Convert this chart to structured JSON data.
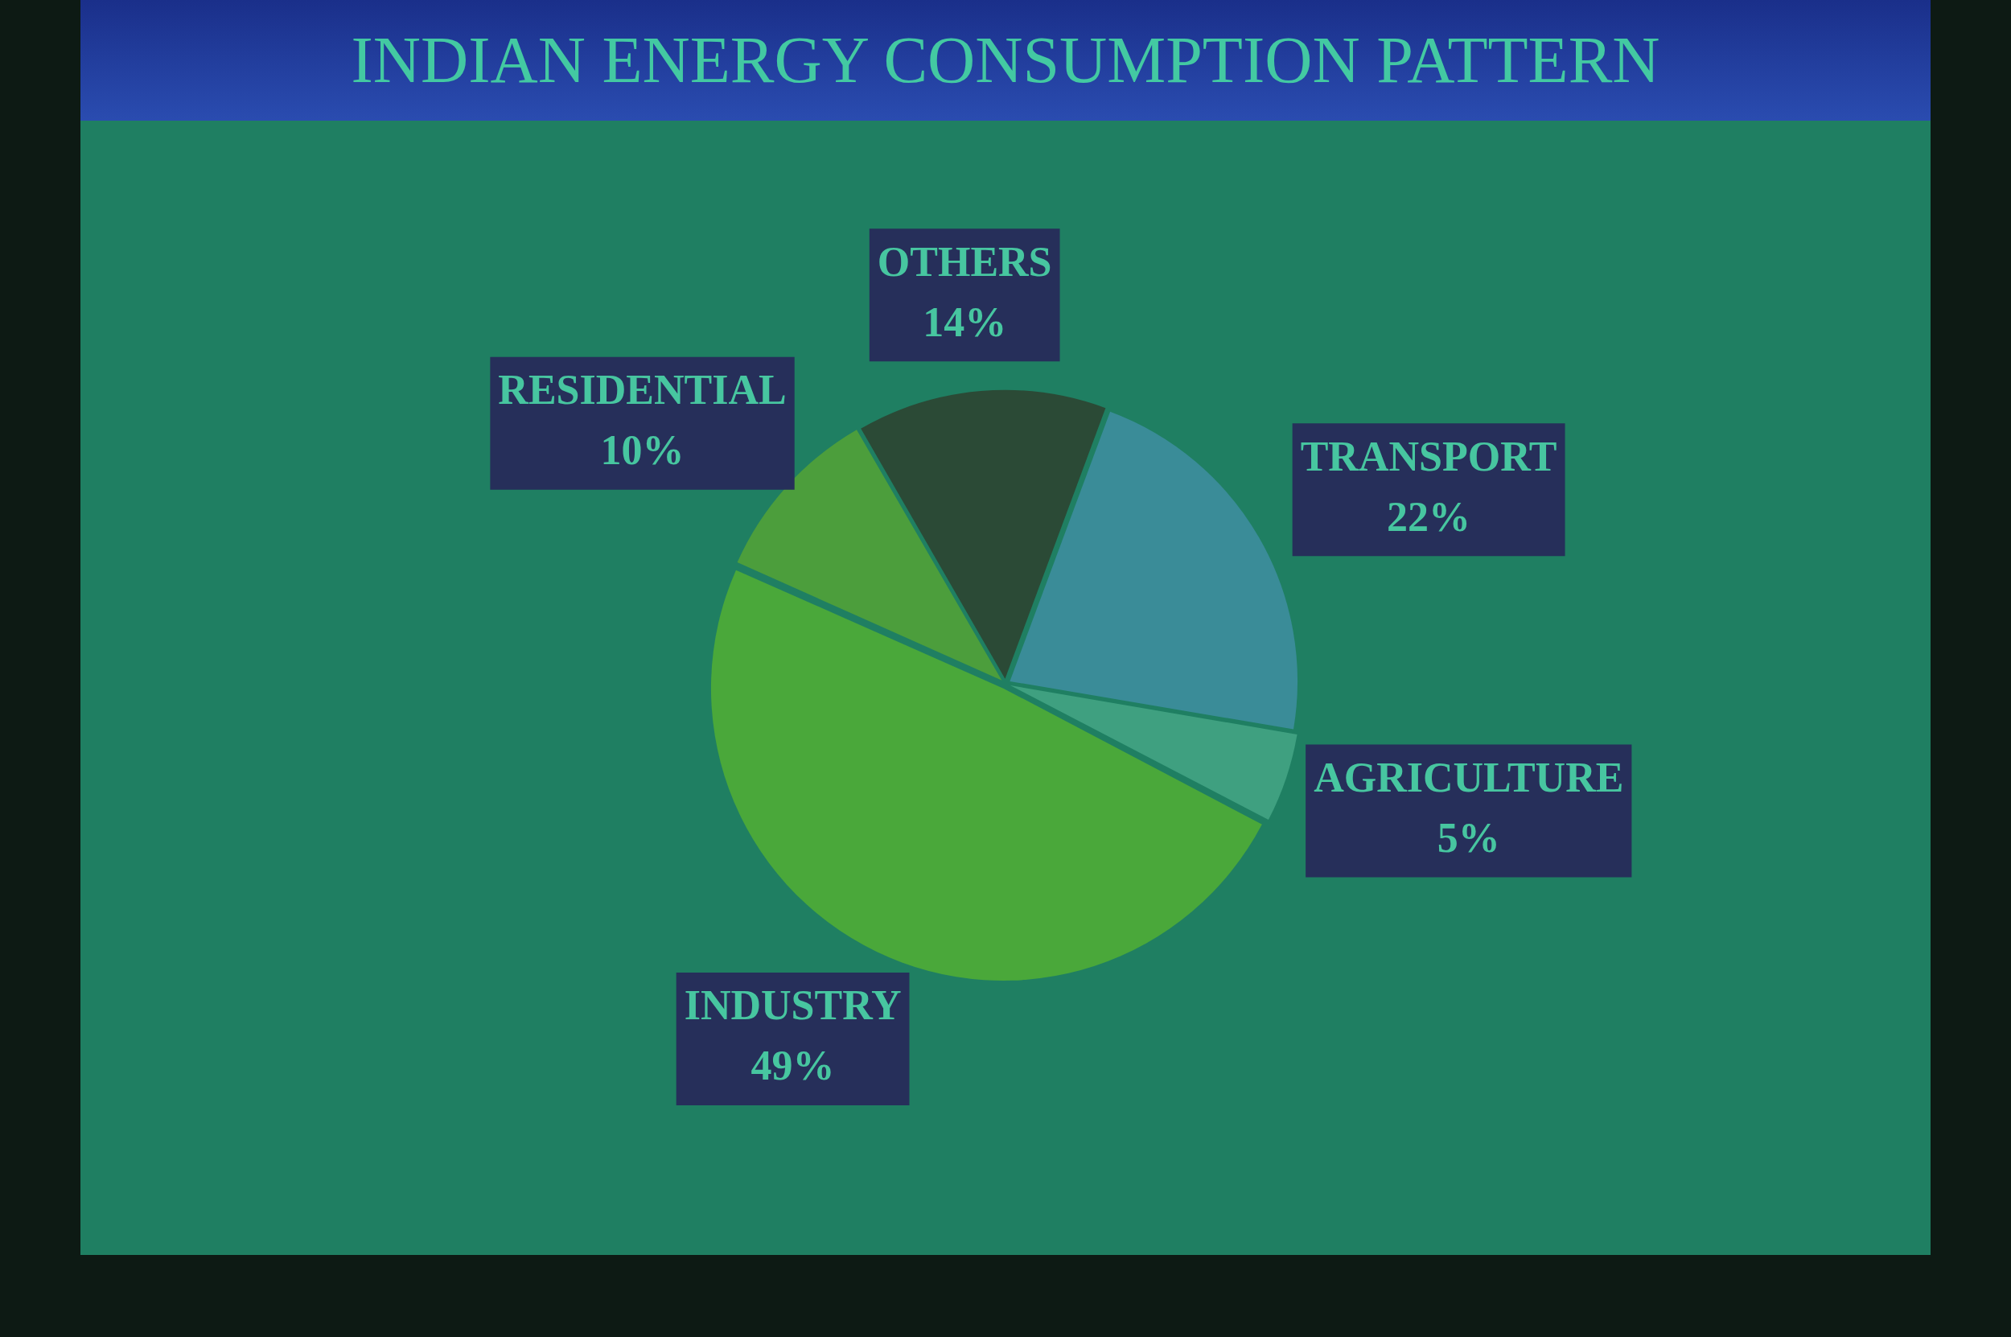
{
  "chart_data": {
    "type": "pie",
    "title": "INDIAN ENERGY CONSUMPTION PATTERN",
    "categories": [
      "OTHERS",
      "TRANSPORT",
      "AGRICULTURE",
      "INDUSTRY",
      "RESIDENTIAL"
    ],
    "values": [
      14,
      22,
      5,
      49,
      10
    ],
    "value_labels": [
      "14%",
      "22%",
      "5%",
      "49%",
      "10%"
    ],
    "colors": [
      "#2b4a36",
      "#3a8c98",
      "#3fa080",
      "#4aa83a",
      "#4c9e3c"
    ],
    "legend": false
  }
}
